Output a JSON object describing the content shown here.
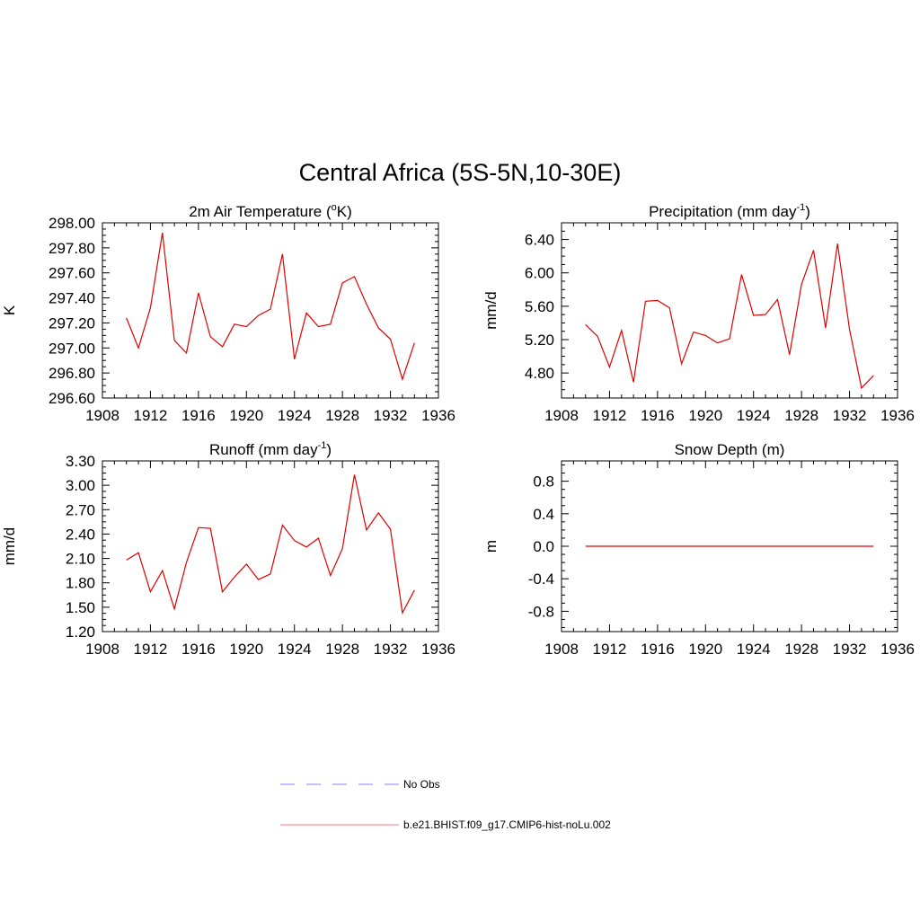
{
  "figure_title": "Central Africa (5S-5N,10-30E)",
  "chart_data": [
    {
      "type": "line",
      "title": "2m Air Temperature (",
      "title_sup": "o",
      "title_end": "K)",
      "xlabel": "",
      "ylabel": "K",
      "xlim": [
        1908,
        1936
      ],
      "xticks": [
        1908,
        1912,
        1916,
        1920,
        1924,
        1928,
        1932,
        1936
      ],
      "ylim": [
        296.6,
        298.0
      ],
      "yticks": [
        "296.60",
        "296.80",
        "297.00",
        "297.20",
        "297.40",
        "297.60",
        "297.80",
        "298.00"
      ],
      "series": [
        {
          "color": "#e00000",
          "x": [
            1910,
            1911,
            1912,
            1913,
            1914,
            1915,
            1916,
            1917,
            1918,
            1919,
            1920,
            1921,
            1922,
            1923,
            1924,
            1925,
            1926,
            1927,
            1928,
            1929,
            1930,
            1931,
            1932,
            1933,
            1934
          ],
          "values": [
            297.24,
            297.0,
            297.32,
            297.92,
            297.06,
            296.96,
            297.44,
            297.09,
            297.01,
            297.19,
            297.17,
            297.26,
            297.31,
            297.75,
            296.91,
            297.28,
            297.17,
            297.19,
            297.52,
            297.57,
            297.35,
            297.16,
            297.07,
            296.75,
            297.04
          ]
        }
      ]
    },
    {
      "type": "line",
      "title": "Precipitation (mm day",
      "title_sup": "-1",
      "title_end": ")",
      "xlabel": "",
      "ylabel": "mm/d",
      "xlim": [
        1908,
        1936
      ],
      "xticks": [
        1908,
        1912,
        1916,
        1920,
        1924,
        1928,
        1932,
        1936
      ],
      "ylim": [
        4.5,
        6.6
      ],
      "yticks": [
        "4.80",
        "5.20",
        "5.60",
        "6.00",
        "6.40"
      ],
      "series": [
        {
          "color": "#e00000",
          "x": [
            1910,
            1911,
            1912,
            1913,
            1914,
            1915,
            1916,
            1917,
            1918,
            1919,
            1920,
            1921,
            1922,
            1923,
            1924,
            1925,
            1926,
            1927,
            1928,
            1929,
            1930,
            1931,
            1932,
            1933,
            1934
          ],
          "values": [
            5.38,
            5.24,
            4.87,
            5.31,
            4.69,
            5.66,
            5.67,
            5.58,
            4.91,
            5.29,
            5.25,
            5.16,
            5.21,
            5.98,
            5.49,
            5.5,
            5.68,
            5.02,
            5.86,
            6.27,
            5.34,
            6.35,
            5.32,
            4.62,
            4.77
          ]
        }
      ]
    },
    {
      "type": "line",
      "title": "Runoff (mm day",
      "title_sup": "-1",
      "title_end": ")",
      "xlabel": "",
      "ylabel": "mm/d",
      "xlim": [
        1908,
        1936
      ],
      "xticks": [
        1908,
        1912,
        1916,
        1920,
        1924,
        1928,
        1932,
        1936
      ],
      "ylim": [
        1.2,
        3.3
      ],
      "yticks": [
        "1.20",
        "1.50",
        "1.80",
        "2.10",
        "2.40",
        "2.70",
        "3.00",
        "3.30"
      ],
      "series": [
        {
          "color": "#e00000",
          "x": [
            1910,
            1911,
            1912,
            1913,
            1914,
            1915,
            1916,
            1917,
            1918,
            1919,
            1920,
            1921,
            1922,
            1923,
            1924,
            1925,
            1926,
            1927,
            1928,
            1929,
            1930,
            1931,
            1932,
            1933,
            1934
          ],
          "values": [
            2.08,
            2.17,
            1.69,
            1.95,
            1.48,
            2.05,
            2.48,
            2.47,
            1.69,
            1.87,
            2.03,
            1.84,
            1.91,
            2.51,
            2.32,
            2.24,
            2.35,
            1.89,
            2.22,
            3.13,
            2.45,
            2.66,
            2.46,
            1.43,
            1.71
          ]
        }
      ]
    },
    {
      "type": "line",
      "title": "Snow Depth (m)",
      "title_sup": "",
      "title_end": "",
      "xlabel": "",
      "ylabel": "m",
      "xlim": [
        1908,
        1936
      ],
      "xticks": [
        1908,
        1912,
        1916,
        1920,
        1924,
        1928,
        1932,
        1936
      ],
      "ylim": [
        -1.05,
        1.05
      ],
      "yticks": [
        "-0.8",
        "-0.4",
        "0.0",
        "0.4",
        "0.8"
      ],
      "series": [
        {
          "color": "#e00000",
          "x": [
            1910,
            1934
          ],
          "values": [
            0.0,
            0.0
          ]
        }
      ]
    }
  ],
  "legend": [
    {
      "label": "No Obs",
      "color": "#9a9aff",
      "style": "dashed"
    },
    {
      "label": "b.e21.BHIST.f09_g17.CMIP6-hist-noLu.002",
      "color": "#ff8f8f",
      "style": "solid"
    }
  ]
}
